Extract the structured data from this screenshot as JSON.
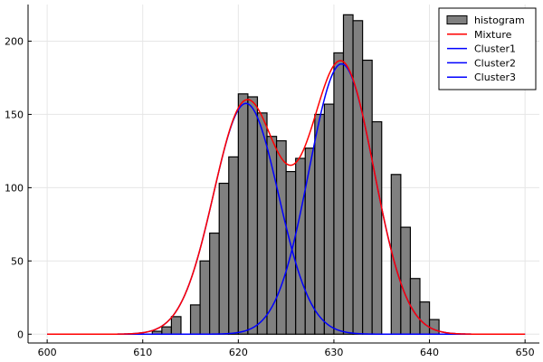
{
  "chart_data": {
    "type": "bar",
    "title": "",
    "xlabel": "",
    "ylabel": "",
    "xlim": [
      598,
      651.5
    ],
    "ylim": [
      -6,
      225
    ],
    "xticks": [
      600,
      610,
      620,
      630,
      640,
      650
    ],
    "yticks": [
      0,
      50,
      100,
      150,
      200
    ],
    "grid": true,
    "legend_position": "top-right",
    "histogram": {
      "name": "histogram",
      "color": "#808080",
      "bin_width": 1,
      "bins": [
        {
          "x0": 611,
          "count": 2
        },
        {
          "x0": 612,
          "count": 5
        },
        {
          "x0": 613,
          "count": 12
        },
        {
          "x0": 615,
          "count": 20
        },
        {
          "x0": 616,
          "count": 50
        },
        {
          "x0": 617,
          "count": 69
        },
        {
          "x0": 618,
          "count": 103
        },
        {
          "x0": 619,
          "count": 121
        },
        {
          "x0": 620,
          "count": 164
        },
        {
          "x0": 621,
          "count": 162
        },
        {
          "x0": 622,
          "count": 151
        },
        {
          "x0": 623,
          "count": 135
        },
        {
          "x0": 624,
          "count": 132
        },
        {
          "x0": 625,
          "count": 111
        },
        {
          "x0": 626,
          "count": 120
        },
        {
          "x0": 627,
          "count": 127
        },
        {
          "x0": 628,
          "count": 150
        },
        {
          "x0": 629,
          "count": 157
        },
        {
          "x0": 630,
          "count": 192
        },
        {
          "x0": 631,
          "count": 218
        },
        {
          "x0": 632,
          "count": 214
        },
        {
          "x0": 633,
          "count": 187
        },
        {
          "x0": 634,
          "count": 145
        },
        {
          "x0": 636,
          "count": 109
        },
        {
          "x0": 637,
          "count": 73
        },
        {
          "x0": 638,
          "count": 38
        },
        {
          "x0": 639,
          "count": 22
        },
        {
          "x0": 640,
          "count": 10
        }
      ]
    },
    "series": [
      {
        "name": "Mixture",
        "color": "#ff0000",
        "components": [
          0,
          1
        ]
      },
      {
        "name": "Cluster1",
        "color": "#0000ff",
        "components": [
          0
        ]
      },
      {
        "name": "Cluster2",
        "color": "#0000ff",
        "components": [
          1
        ]
      },
      {
        "name": "Cluster3",
        "color": "#0000ff",
        "components": []
      }
    ],
    "components": [
      {
        "mean": 620.8,
        "sd": 3.4,
        "peak": 157.5
      },
      {
        "mean": 630.8,
        "sd": 3.4,
        "peak": 184.5
      }
    ],
    "curve_x_range": [
      600,
      650
    ]
  }
}
